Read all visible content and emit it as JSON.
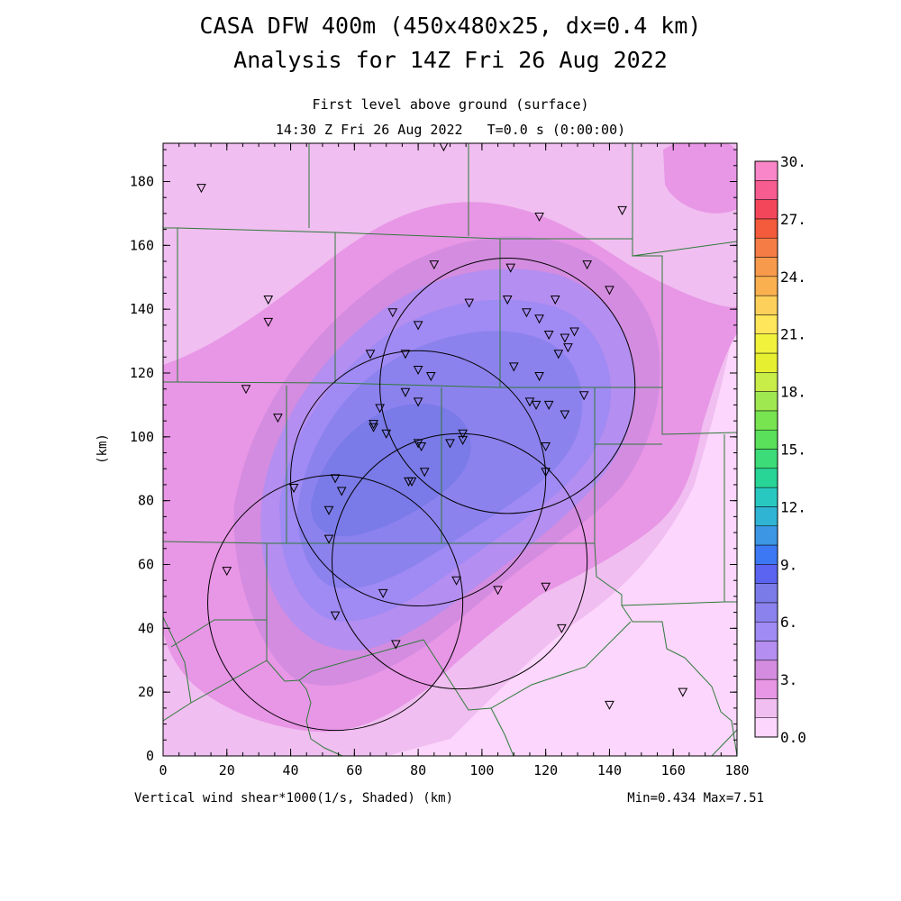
{
  "chart_data": {
    "type": "heatmap",
    "title": "CASA DFW 400m (450x480x25, dx=0.4 km)",
    "subtitle": "Analysis for 14Z Fri 26 Aug 2022",
    "level_label": "First level above ground (surface)",
    "time_label": "14:30 Z Fri 26 Aug 2022   T=0.0 s (0:00:00)",
    "xlabel": "(km)",
    "ylabel": "(km)",
    "field_label": "Vertical wind shear*1000(1/s, Shaded)  (km)",
    "minmax_label": "Min=0.434 Max=7.51",
    "xlim": [
      0,
      180
    ],
    "ylim": [
      0,
      192
    ],
    "x_ticks": [
      "0",
      "20",
      "40",
      "60",
      "80",
      "100",
      "120",
      "140",
      "160",
      "180"
    ],
    "y_ticks": [
      "0",
      "20",
      "40",
      "60",
      "80",
      "100",
      "120",
      "140",
      "160",
      "180"
    ],
    "colorbar": {
      "labels": [
        "0.0",
        "3.",
        "6.",
        "9.",
        "12.",
        "15.",
        "18.",
        "21.",
        "24.",
        "27.",
        "30."
      ],
      "colors": [
        "#fcd6fc",
        "#f0bef0",
        "#e896e6",
        "#d48ce0",
        "#b48ef0",
        "#a08af4",
        "#8c82ee",
        "#7a7ae8",
        "#5a64f0",
        "#3c78f4",
        "#3c96e4",
        "#30b4d4",
        "#28c8c0",
        "#28d496",
        "#3cdc78",
        "#5ae05a",
        "#78e450",
        "#a0e850",
        "#c8ec48",
        "#e6f030",
        "#f0f23c",
        "#ffe65a",
        "#fcd05a",
        "#fab04e",
        "#f89a4c",
        "#f67c46",
        "#f45a3c",
        "#f4465a",
        "#f65c90",
        "#f886c8"
      ]
    },
    "shading_levels": [
      {
        "value": 0.5,
        "color": "#fcd6fc"
      },
      {
        "value": 1.5,
        "color": "#f0bef0"
      },
      {
        "value": 2.5,
        "color": "#e896e6"
      },
      {
        "value": 3.5,
        "color": "#d48ce0"
      },
      {
        "value": 4.5,
        "color": "#b48ef0"
      },
      {
        "value": 5.5,
        "color": "#a08af4"
      },
      {
        "value": 6.5,
        "color": "#8c82ee"
      },
      {
        "value": 7.5,
        "color": "#7a7ae8"
      }
    ],
    "radar_rings": [
      {
        "cx": 108,
        "cy": 116,
        "r": 40
      },
      {
        "cx": 80,
        "cy": 87,
        "r": 40
      },
      {
        "cx": 93,
        "cy": 61,
        "r": 40
      },
      {
        "cx": 54,
        "cy": 48,
        "r": 40
      }
    ],
    "stations": [
      [
        12,
        178
      ],
      [
        33,
        143
      ],
      [
        33,
        136
      ],
      [
        26,
        115
      ],
      [
        36,
        106
      ],
      [
        88,
        191
      ],
      [
        118,
        169
      ],
      [
        144,
        171
      ],
      [
        85,
        154
      ],
      [
        109,
        153
      ],
      [
        133,
        154
      ],
      [
        140,
        146
      ],
      [
        96,
        142
      ],
      [
        108,
        143
      ],
      [
        123,
        143
      ],
      [
        72,
        139
      ],
      [
        80,
        135
      ],
      [
        114,
        139
      ],
      [
        118,
        137
      ],
      [
        121,
        132
      ],
      [
        126,
        131
      ],
      [
        129,
        133
      ],
      [
        127,
        128
      ],
      [
        124,
        126
      ],
      [
        65,
        126
      ],
      [
        76,
        126
      ],
      [
        80,
        121
      ],
      [
        84,
        119
      ],
      [
        110,
        122
      ],
      [
        118,
        119
      ],
      [
        76,
        114
      ],
      [
        80,
        111
      ],
      [
        68,
        109
      ],
      [
        115,
        111
      ],
      [
        117,
        110
      ],
      [
        121,
        110
      ],
      [
        126,
        107
      ],
      [
        132,
        113
      ],
      [
        66,
        104
      ],
      [
        66,
        103
      ],
      [
        70,
        101
      ],
      [
        94,
        101
      ],
      [
        94,
        99
      ],
      [
        90,
        98
      ],
      [
        80,
        98
      ],
      [
        81,
        97
      ],
      [
        120,
        97
      ],
      [
        82,
        89
      ],
      [
        120,
        89
      ],
      [
        78,
        86
      ],
      [
        77,
        86
      ],
      [
        54,
        87
      ],
      [
        56,
        83
      ],
      [
        41,
        84
      ],
      [
        52,
        77
      ],
      [
        52,
        68
      ],
      [
        20,
        58
      ],
      [
        69,
        51
      ],
      [
        92,
        55
      ],
      [
        105,
        52
      ],
      [
        120,
        53
      ],
      [
        125,
        40
      ],
      [
        54,
        44
      ],
      [
        73,
        35
      ],
      [
        140,
        16
      ],
      [
        163,
        20
      ]
    ]
  }
}
